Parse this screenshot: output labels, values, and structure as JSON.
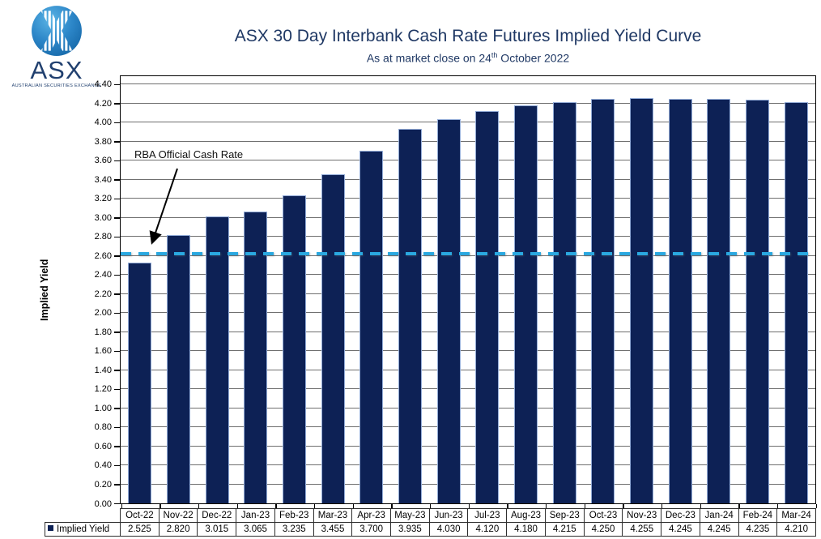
{
  "header": {
    "logo": {
      "icon": "asx-globe-x-icon",
      "wordmark": "ASX",
      "tagline": "AUSTRALIAN SECURITIES EXCHANGE"
    },
    "title": "ASX 30 Day Interbank Cash Rate Futures Implied Yield Curve",
    "subtitle_prefix": "As at market close on 24",
    "subtitle_sup": "th",
    "subtitle_suffix": " October 2022"
  },
  "chart_data": {
    "type": "bar",
    "title": "ASX 30 Day Interbank Cash Rate Futures Implied Yield Curve",
    "subtitle": "As at market close on 24th October 2022",
    "xlabel": "",
    "ylabel": "Implied Yield",
    "ylim": [
      0.0,
      4.4
    ],
    "ytick_step": 0.2,
    "grid": true,
    "legend_position": "bottom-table",
    "categories": [
      "Oct-22",
      "Nov-22",
      "Dec-22",
      "Jan-23",
      "Feb-23",
      "Mar-23",
      "Apr-23",
      "May-23",
      "Jun-23",
      "Jul-23",
      "Aug-23",
      "Sep-23",
      "Oct-23",
      "Nov-23",
      "Dec-23",
      "Jan-24",
      "Feb-24",
      "Mar-24"
    ],
    "series": [
      {
        "name": "Implied Yield",
        "values": [
          2.525,
          2.82,
          3.015,
          3.065,
          3.235,
          3.455,
          3.7,
          3.935,
          4.03,
          4.12,
          4.18,
          4.215,
          4.25,
          4.255,
          4.245,
          4.245,
          4.235,
          4.21
        ]
      }
    ],
    "annotations": [
      {
        "type": "hline",
        "label": "RBA Official Cash Rate",
        "value": 2.6,
        "style": "dashed"
      }
    ]
  },
  "table": {
    "row_label": "Implied Yield"
  },
  "colors": {
    "bar": "#0D2155",
    "bar_border": "#93ACD7",
    "grid": "#6F6F6F",
    "axis": "#000000",
    "title_blue": "#1F3864",
    "rba_line": "#2AA8E0",
    "table_border": "#2E2E2E",
    "logo_blue_light": "#5BB4E5",
    "logo_blue_dark": "#1668A8",
    "logo_text": "#21406F"
  }
}
